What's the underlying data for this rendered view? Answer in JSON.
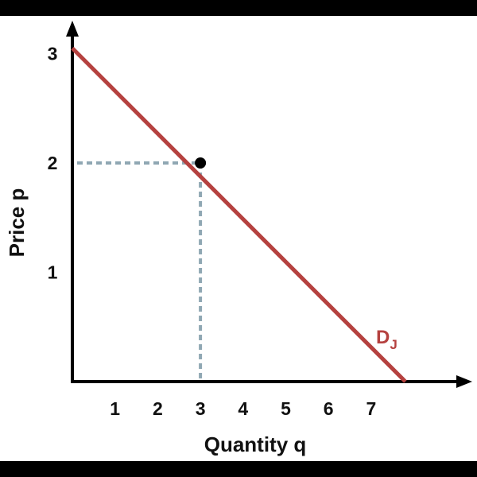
{
  "chart_data": {
    "type": "line",
    "xlabel": "Quantity q",
    "ylabel": "Price p",
    "x_ticks": [
      "1",
      "2",
      "3",
      "4",
      "5",
      "6",
      "7"
    ],
    "y_ticks": [
      "1",
      "2",
      "3"
    ],
    "xlim": [
      0,
      8.4
    ],
    "ylim": [
      0,
      3.2
    ],
    "grid": false,
    "series": [
      {
        "name": "DJ",
        "name_main": "D",
        "name_sub": "J",
        "color": "#b5413f",
        "x": [
          0,
          7.8
        ],
        "y": [
          3.05,
          0
        ]
      }
    ],
    "points": [
      {
        "x": 3,
        "y": 2
      }
    ],
    "guide_color": "#8fa7b3"
  }
}
